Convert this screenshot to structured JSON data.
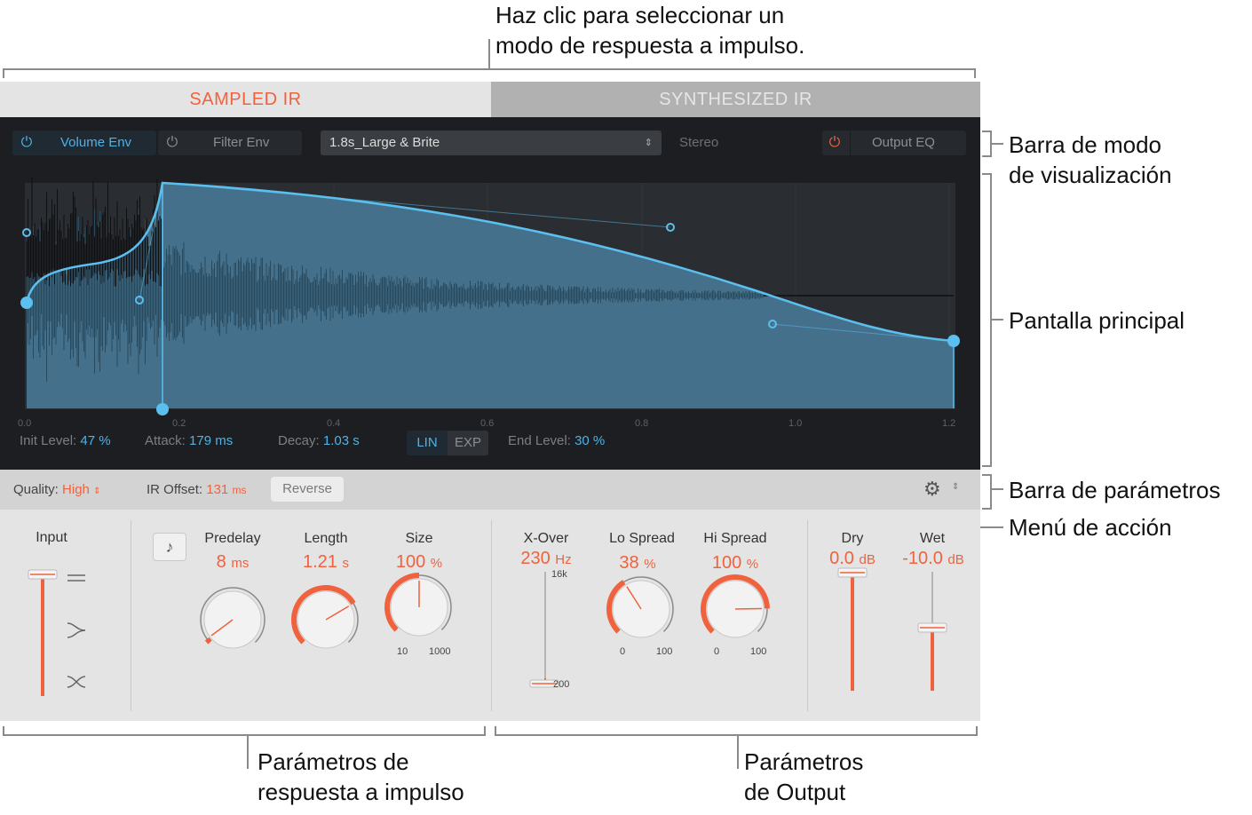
{
  "callouts": {
    "top_line1": "Haz clic para seleccionar un",
    "top_line2": "modo de respuesta a impulso.",
    "view_bar": "Barra de modo\nde visualización",
    "main_display": "Pantalla principal",
    "param_bar": "Barra de parámetros",
    "action_menu": "Menú de acción",
    "ir_params": "Parámetros de\nrespuesta a impulso",
    "output_params": "Parámetros\nde Output"
  },
  "tabs": {
    "sampled": "SAMPLED IR",
    "synthesized": "SYNTHESIZED IR",
    "active": "sampled"
  },
  "view_bar": {
    "volume_env": "Volume Env",
    "filter_env": "Filter Env",
    "preset": "1.8s_Large & Brite",
    "stereo": "Stereo",
    "output_eq": "Output EQ"
  },
  "axis": {
    "ticks": [
      "0.0",
      "0.2",
      "0.4",
      "0.6",
      "0.8",
      "1.0",
      "1.2"
    ]
  },
  "envelope": {
    "init_level_label": "Init Level:",
    "init_level_value": "47 %",
    "attack_label": "Attack:",
    "attack_value": "179 ms",
    "decay_label": "Decay:",
    "decay_value": "1.03 s",
    "lin": "LIN",
    "exp": "EXP",
    "mode": "LIN",
    "end_level_label": "End Level:",
    "end_level_value": "30 %"
  },
  "param_bar": {
    "quality_label": "Quality:",
    "quality_value": "High",
    "ir_offset_label": "IR Offset:",
    "ir_offset_value": "131",
    "ir_offset_unit": "ms",
    "reverse": "Reverse"
  },
  "controls": {
    "input_label": "Input",
    "predelay_label": "Predelay",
    "predelay_value": "8",
    "predelay_unit": "ms",
    "length_label": "Length",
    "length_value": "1.21",
    "length_unit": "s",
    "size_label": "Size",
    "size_value": "100",
    "size_unit": "%",
    "size_min": "10",
    "size_max": "1000",
    "xover_label": "X-Over",
    "xover_value": "230",
    "xover_unit": "Hz",
    "xover_top": "16k",
    "xover_bottom": "200",
    "lospread_label": "Lo Spread",
    "lospread_value": "38",
    "lospread_unit": "%",
    "lospread_min": "0",
    "lospread_max": "100",
    "hispread_label": "Hi Spread",
    "hispread_value": "100",
    "hispread_unit": "%",
    "hispread_min": "0",
    "hispread_max": "100",
    "dry_label": "Dry",
    "dry_value": "0.0",
    "dry_unit": "dB",
    "wet_label": "Wet",
    "wet_value": "-10.0",
    "wet_unit": "dB"
  },
  "colors": {
    "accent_orange": "#f0623e",
    "accent_blue": "#4fb2e6",
    "display_bg": "#1c1e21"
  }
}
